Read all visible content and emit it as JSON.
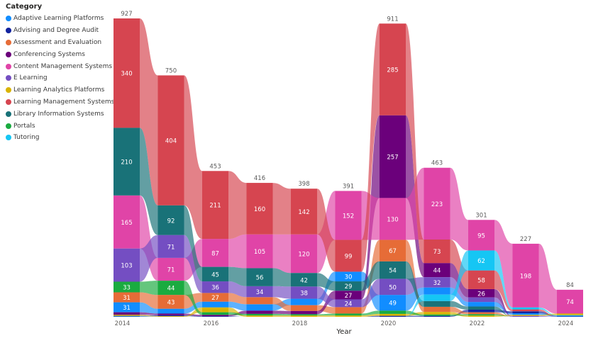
{
  "chart_data": {
    "type": "ribbon",
    "title": "",
    "xlabel": "Year",
    "ylabel": "",
    "legend_title": "Category",
    "legend_position": "left",
    "x": [
      "2014",
      "2015",
      "2016",
      "2017",
      "2018",
      "2019",
      "2020",
      "2021",
      "2022",
      "2023",
      "2024"
    ],
    "x_tick_labels": [
      "2014",
      "2016",
      "2018",
      "2020",
      "2022",
      "2024"
    ],
    "totals": [
      927,
      750,
      453,
      416,
      398,
      391,
      911,
      463,
      301,
      227,
      84
    ],
    "series": [
      {
        "name": "Adaptive Learning Platforms",
        "color": "#118DFF",
        "values": [
          31,
          15,
          18,
          20,
          20,
          30,
          49,
          22,
          14,
          5,
          1
        ]
      },
      {
        "name": "Advising and Degree Audit",
        "color": "#12239E",
        "values": [
          2,
          3,
          2,
          0,
          0,
          0,
          3,
          3,
          8,
          6,
          2
        ]
      },
      {
        "name": "Assessment and Evaluation",
        "color": "#E66C37",
        "values": [
          31,
          43,
          27,
          22,
          18,
          20,
          67,
          16,
          6,
          0,
          0
        ]
      },
      {
        "name": "Conferencing Systems",
        "color": "#6B007B",
        "values": [
          8,
          5,
          4,
          10,
          10,
          27,
          257,
          44,
          26,
          0,
          0
        ]
      },
      {
        "name": "Content Management Systems",
        "color": "#E044A7",
        "values": [
          165,
          71,
          87,
          105,
          120,
          152,
          130,
          223,
          95,
          198,
          74
        ]
      },
      {
        "name": "E Learning",
        "color": "#744EC2",
        "values": [
          103,
          71,
          36,
          34,
          38,
          24,
          50,
          32,
          14,
          3,
          0
        ]
      },
      {
        "name": "Learning Analytics Platforms",
        "color": "#D9B300",
        "values": [
          3,
          2,
          15,
          4,
          4,
          4,
          6,
          8,
          4,
          3,
          5
        ]
      },
      {
        "name": "Learning Management Systems",
        "color": "#D64550",
        "values": [
          340,
          404,
          211,
          160,
          142,
          99,
          285,
          73,
          58,
          6,
          0
        ]
      },
      {
        "name": "Library Information Systems",
        "color": "#197278",
        "values": [
          210,
          92,
          45,
          56,
          42,
          29,
          54,
          18,
          10,
          0,
          0
        ]
      },
      {
        "name": "Portals",
        "color": "#1AAB40",
        "values": [
          33,
          44,
          8,
          5,
          4,
          6,
          10,
          4,
          4,
          0,
          0
        ]
      },
      {
        "name": "Tutoring",
        "color": "#15C6F4",
        "values": [
          1,
          0,
          0,
          0,
          0,
          0,
          0,
          20,
          62,
          6,
          2
        ]
      }
    ],
    "labeled_values": {
      "2014": {
        "Learning Management Systems": 340,
        "Library Information Systems": 210,
        "Content Management Systems": 165,
        "E Learning": 103,
        "Portals": 33,
        "Assessment and Evaluation": 31,
        "Adaptive Learning Platforms": 31
      },
      "2015": {
        "Learning Management Systems": 404,
        "Library Information Systems": 92,
        "E Learning": 71,
        "Content Management Systems": 71,
        "Portals": 44,
        "Assessment and Evaluation": 43
      },
      "2016": {
        "Learning Management Systems": 211,
        "Content Management Systems": 87,
        "Library Information Systems": 45,
        "E Learning": 36,
        "Assessment and Evaluation": 27
      },
      "2017": {
        "Learning Management Systems": 160,
        "Content Management Systems": 105,
        "Library Information Systems": 56,
        "E Learning": 34
      },
      "2018": {
        "Learning Management Systems": 142,
        "Content Management Systems": 120,
        "Library Information Systems": 42,
        "E Learning": 38
      },
      "2019": {
        "Content Management Systems": 152,
        "Learning Management Systems": 99,
        "Adaptive Learning Platforms": 30,
        "Library Information Systems": 29,
        "Conferencing Systems": 27,
        "E Learning": 24
      },
      "2020": {
        "Learning Management Systems": 285,
        "Conferencing Systems": 257,
        "Content Management Systems": 130,
        "Assessment and Evaluation": 67,
        "Library Information Systems": 54,
        "E Learning": 50,
        "Adaptive Learning Platforms": 49
      },
      "2021": {
        "Content Management Systems": 223,
        "Learning Management Systems": 73,
        "Conferencing Systems": 44,
        "E Learning": 32
      },
      "2022": {
        "Content Management Systems": 95,
        "Tutoring": 62,
        "Learning Management Systems": 58,
        "Conferencing Systems": 26
      },
      "2023": {
        "Content Management Systems": 198
      },
      "2024": {
        "Content Management Systems": 74
      }
    },
    "label_min_value": 24,
    "grid": false
  }
}
